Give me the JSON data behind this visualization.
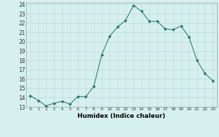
{
  "x": [
    0,
    1,
    2,
    3,
    4,
    5,
    6,
    7,
    8,
    9,
    10,
    11,
    12,
    13,
    14,
    15,
    16,
    17,
    18,
    19,
    20,
    21,
    22,
    23
  ],
  "y": [
    14.2,
    13.7,
    13.1,
    13.4,
    13.6,
    13.3,
    14.1,
    14.1,
    15.2,
    18.6,
    20.6,
    21.6,
    22.3,
    23.9,
    23.3,
    22.2,
    22.2,
    21.4,
    21.3,
    21.7,
    20.5,
    18.0,
    16.6,
    15.8
  ],
  "line_color": "#2d7a68",
  "marker": "D",
  "marker_size": 2,
  "bg_color": "#d6f0ed",
  "grid_color": "#b8ddd8",
  "xlabel": "Humidex (Indice chaleur)",
  "xlim": [
    -0.5,
    23.5
  ],
  "ylim": [
    13,
    24.2
  ],
  "yticks": [
    13,
    14,
    15,
    16,
    17,
    18,
    19,
    20,
    21,
    22,
    23,
    24
  ],
  "xticks": [
    0,
    1,
    2,
    3,
    4,
    5,
    6,
    7,
    8,
    9,
    10,
    11,
    12,
    13,
    14,
    15,
    16,
    17,
    18,
    19,
    20,
    21,
    22,
    23
  ]
}
